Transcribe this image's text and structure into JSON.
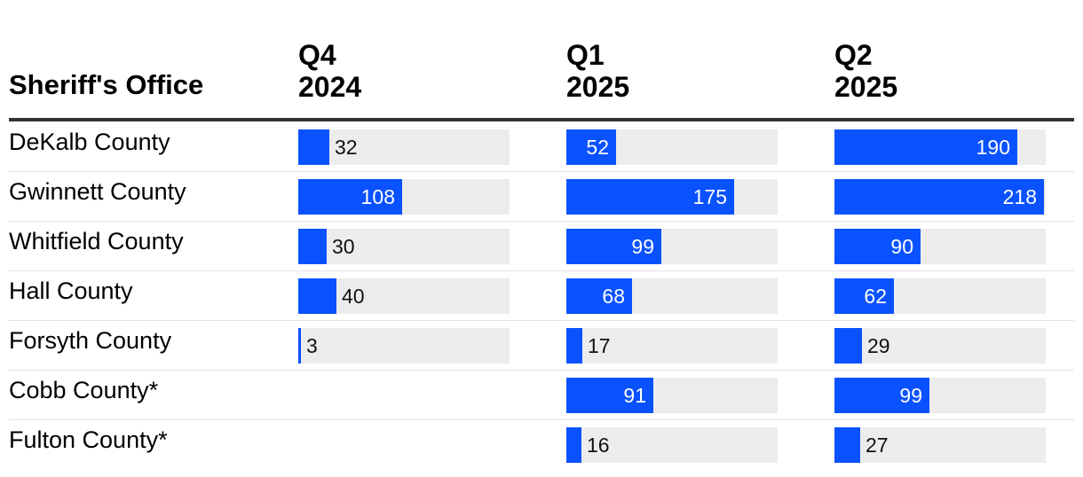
{
  "chart_data": {
    "type": "table",
    "row_header": "Sheriff's Office",
    "columns": [
      "Q4\n2024",
      "Q1\n2025",
      "Q2\n2025"
    ],
    "rows": [
      {
        "name": "DeKalb County",
        "values": [
          32,
          52,
          190
        ]
      },
      {
        "name": "Gwinnett County",
        "values": [
          108,
          175,
          218
        ]
      },
      {
        "name": "Whitfield County",
        "values": [
          30,
          99,
          90
        ]
      },
      {
        "name": "Hall County",
        "values": [
          40,
          68,
          62
        ]
      },
      {
        "name": "Forsyth County",
        "values": [
          3,
          17,
          29
        ]
      },
      {
        "name": "Cobb County*",
        "values": [
          null,
          91,
          99
        ]
      },
      {
        "name": "Fulton County*",
        "values": [
          null,
          16,
          27
        ]
      }
    ],
    "bar_max": 220
  },
  "colors": {
    "bar": "#0a52ff",
    "track": "#ececec",
    "value_inside": "#ffffff",
    "value_outside": "#111111",
    "header_rule": "#333333"
  }
}
